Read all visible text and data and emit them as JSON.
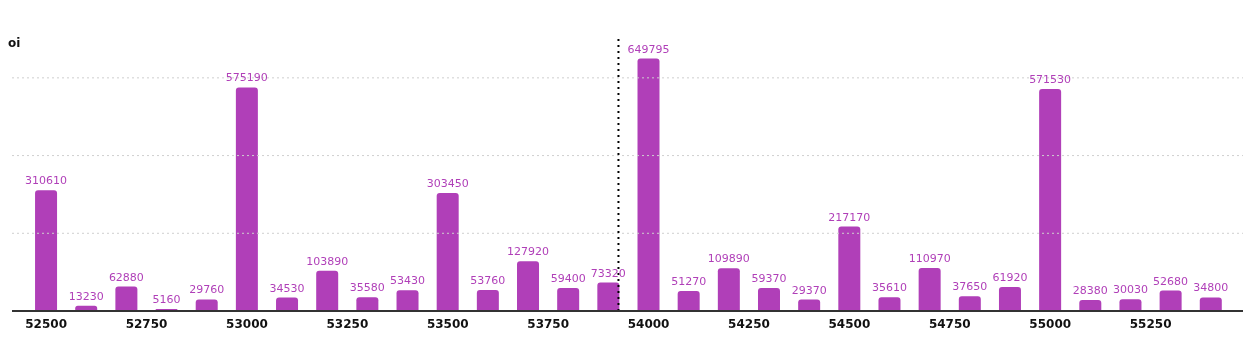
{
  "chart_data": {
    "type": "bar",
    "ylabel": "oi",
    "x": [
      52500,
      52600,
      52700,
      52800,
      52900,
      53000,
      53100,
      53200,
      53300,
      53400,
      53500,
      53600,
      53700,
      53800,
      53900,
      54000,
      54100,
      54200,
      54300,
      54400,
      54500,
      54600,
      54700,
      54800,
      54900,
      55000,
      55100,
      55200,
      55300,
      55400
    ],
    "values": [
      310610,
      13230,
      62880,
      5160,
      29760,
      575190,
      34530,
      103890,
      35580,
      53430,
      303450,
      53760,
      127920,
      59400,
      73320,
      649795,
      51270,
      109890,
      59370,
      29370,
      217170,
      35610,
      110970,
      37650,
      61920,
      571530,
      28380,
      30030,
      52680,
      34800
    ],
    "color": "#b03fb8",
    "data_labels": true,
    "xlim": [
      52415,
      55480
    ],
    "xticks": [
      52500,
      52750,
      53000,
      53250,
      53500,
      53750,
      54000,
      54250,
      54500,
      54750,
      55000,
      55250
    ],
    "ylim": [
      0,
      700000
    ],
    "yticks": [
      {
        "value": 0,
        "label": null
      },
      {
        "value": 200000,
        "label": null
      },
      {
        "value": 400000,
        "label": null
      },
      {
        "value": 600000,
        "label": null
      }
    ],
    "tick_labels": "x",
    "grid": "y",
    "ref_lines": [
      {
        "axis": "x",
        "value": 53925,
        "color": "#000000",
        "line_style": "dotted"
      }
    ]
  }
}
